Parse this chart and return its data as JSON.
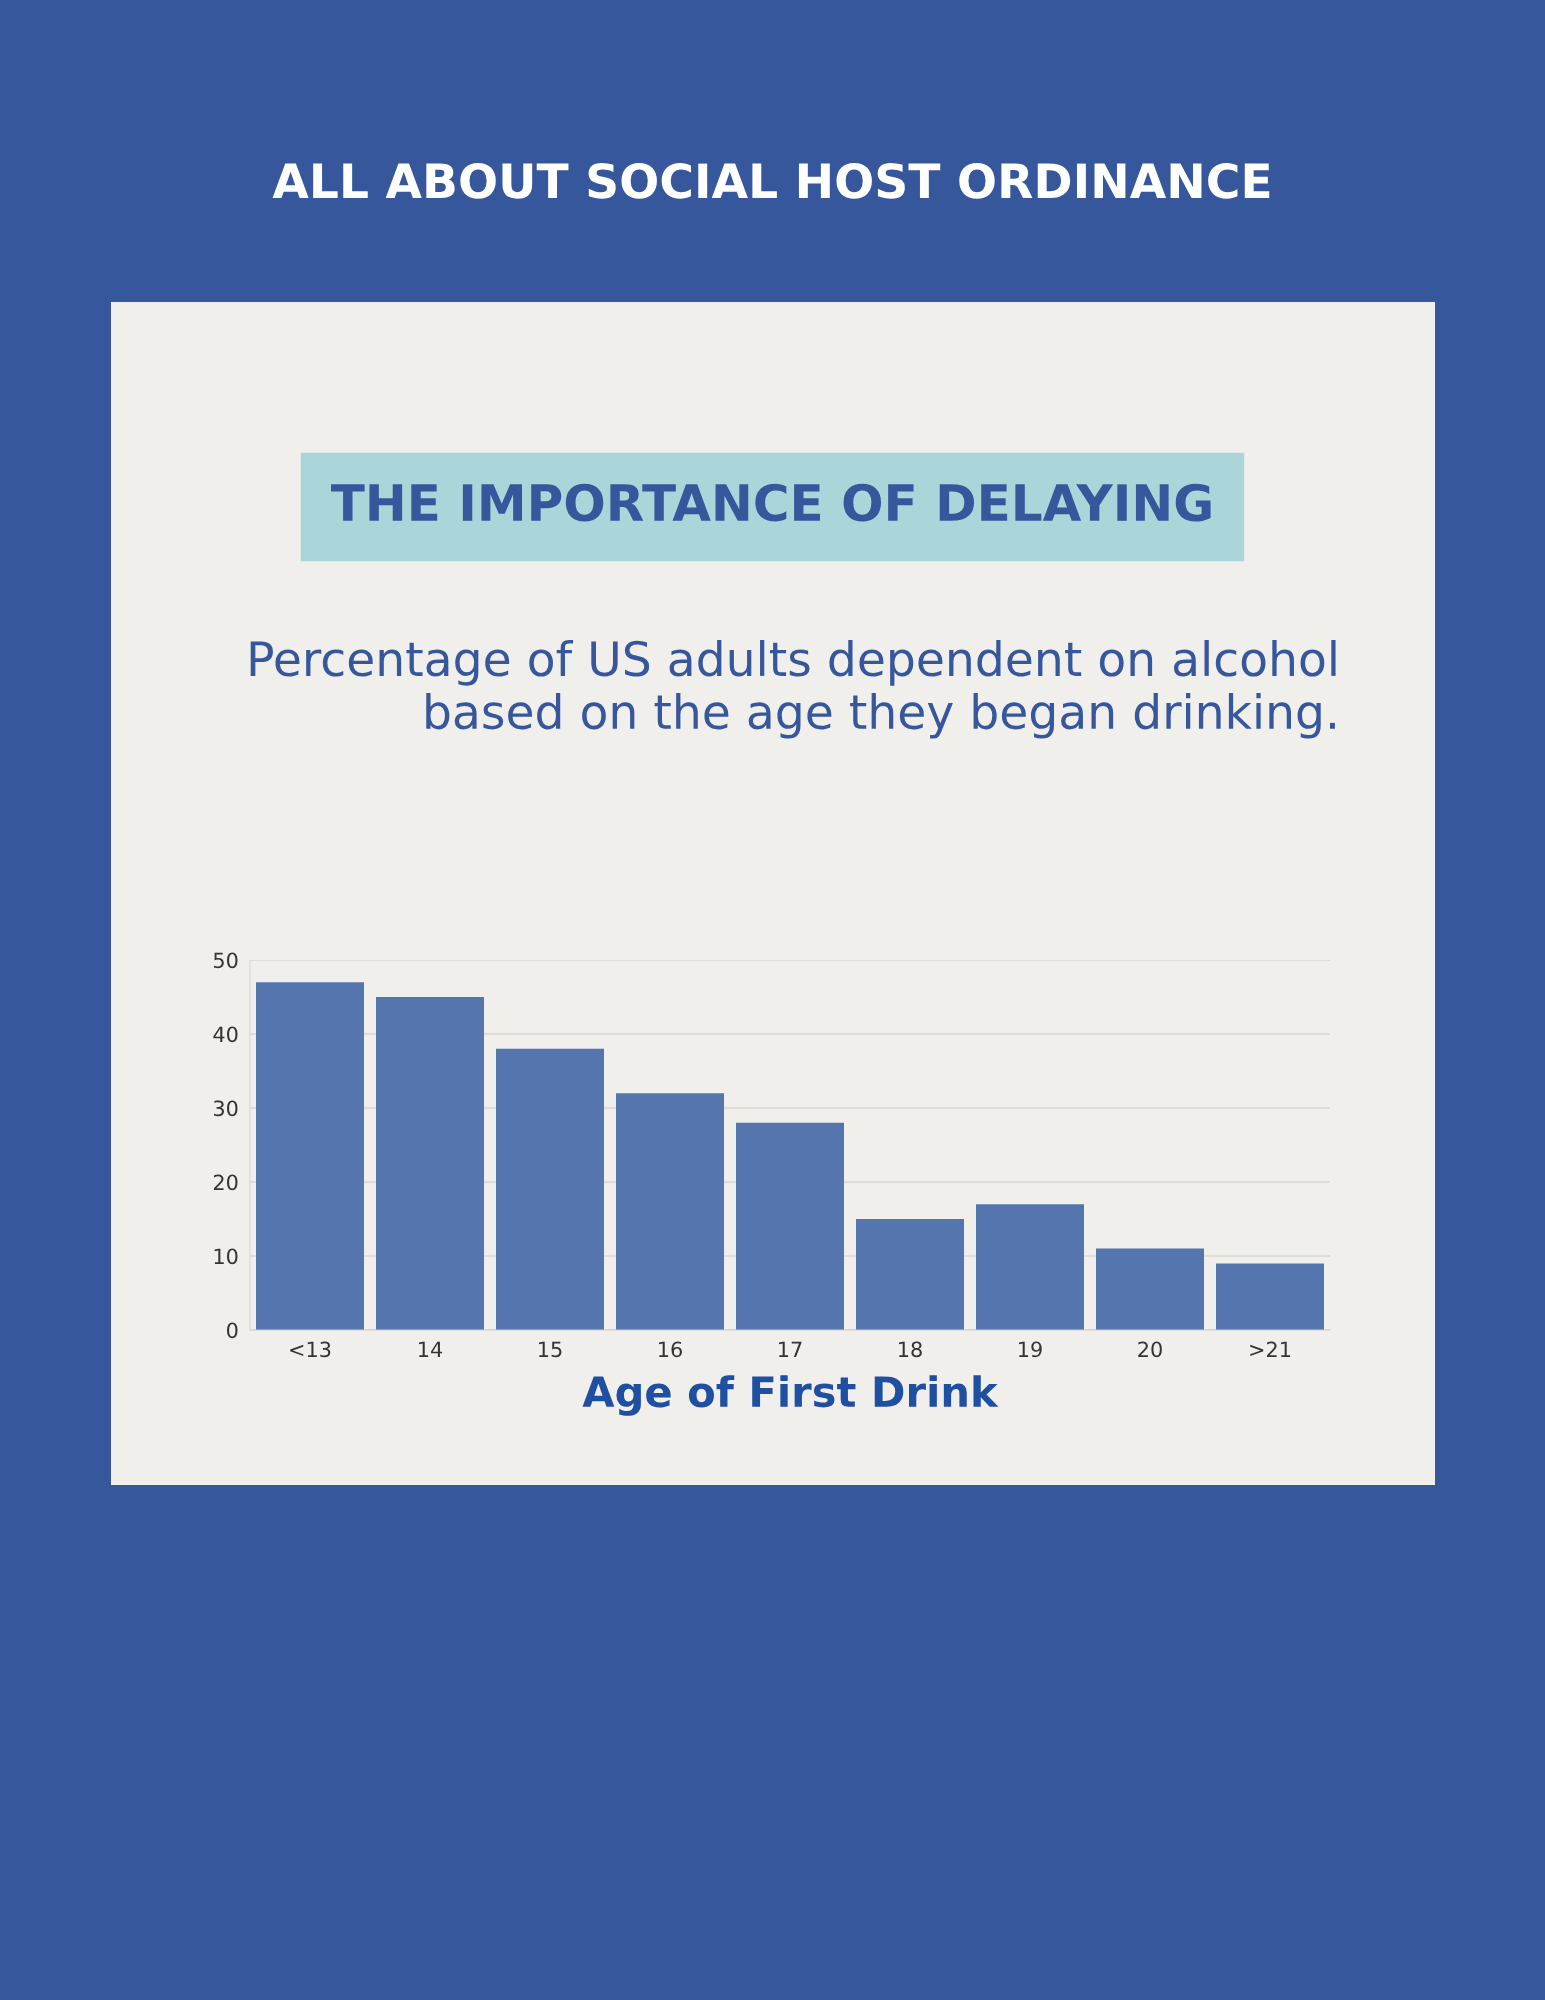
{
  "chart_data": {
    "type": "bar",
    "title": "THE IMPORTANCE OF DELAYING",
    "subtitle": "Percentage of US adults dependent on alcohol based on the age they began drinking.",
    "annotations": [
      "ALL ABOUT SOCIAL HOST ORDINANCE"
    ],
    "xlabel": "Age of First Drink",
    "categories": [
      "<13",
      "14",
      "15",
      "16",
      "17",
      "18",
      "19",
      "20",
      ">21"
    ],
    "values": [
      47,
      45,
      38,
      32,
      28,
      15,
      17,
      11,
      9
    ],
    "color": "#5575ae",
    "ylim": [
      0,
      50
    ],
    "yticks": [
      0,
      10,
      20,
      30,
      40,
      50
    ],
    "grid": "y",
    "legend": false
  }
}
